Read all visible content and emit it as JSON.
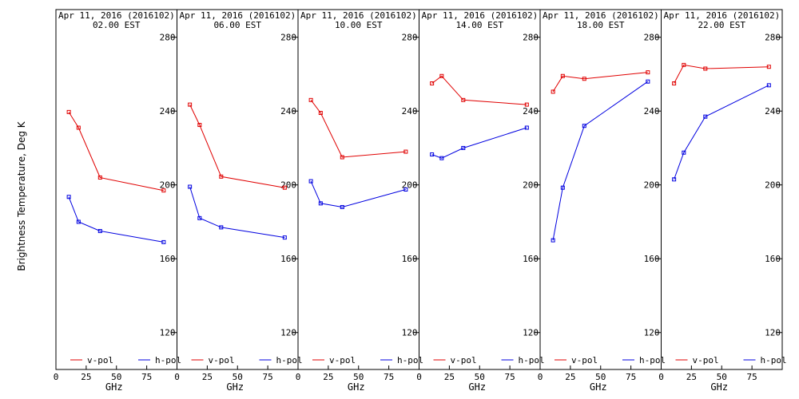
{
  "figure": {
    "ylabel": "Brightness Temperature, Deg K",
    "xlabel": "GHz"
  },
  "colors": {
    "v_pol": "#e00000",
    "h_pol": "#0000e0",
    "axes": "#000000",
    "background": "#ffffff"
  },
  "chart_data": [
    {
      "type": "line",
      "title": "Apr 11, 2016 (2016102)",
      "subtitle": "02.00 EST",
      "xlabel": "GHz",
      "xlim": [
        0,
        100
      ],
      "ylim": [
        100,
        295
      ],
      "xticks": [
        "0",
        "25",
        "50",
        "75"
      ],
      "yticks": [
        "120",
        "160",
        "200",
        "240",
        "280"
      ],
      "x": [
        10.65,
        18.7,
        36.5,
        89.0
      ],
      "series": [
        {
          "name": "v-pol",
          "values": [
            239.5,
            231,
            204,
            197
          ]
        },
        {
          "name": "h-pol",
          "values": [
            193.5,
            180,
            175,
            169
          ]
        }
      ],
      "legend": [
        "v-pol",
        "h-pol"
      ],
      "legend_position": "bottom"
    },
    {
      "type": "line",
      "title": "Apr 11, 2016 (2016102)",
      "subtitle": "06.00 EST",
      "xlabel": "GHz",
      "xlim": [
        0,
        100
      ],
      "ylim": [
        100,
        295
      ],
      "xticks": [
        "0",
        "25",
        "50",
        "75"
      ],
      "yticks": [
        "120",
        "160",
        "200",
        "240",
        "280"
      ],
      "x": [
        10.65,
        18.7,
        36.5,
        89.0
      ],
      "series": [
        {
          "name": "v-pol",
          "values": [
            243.5,
            232.5,
            204.5,
            198.5
          ]
        },
        {
          "name": "h-pol",
          "values": [
            199,
            182,
            177,
            171.5
          ]
        }
      ],
      "legend": [
        "v-pol",
        "h-pol"
      ],
      "legend_position": "bottom"
    },
    {
      "type": "line",
      "title": "Apr 11, 2016 (2016102)",
      "subtitle": "10.00 EST",
      "xlabel": "GHz",
      "xlim": [
        0,
        100
      ],
      "ylim": [
        100,
        295
      ],
      "xticks": [
        "0",
        "25",
        "50",
        "75"
      ],
      "yticks": [
        "120",
        "160",
        "200",
        "240",
        "280"
      ],
      "x": [
        10.65,
        18.7,
        36.5,
        89.0
      ],
      "series": [
        {
          "name": "v-pol",
          "values": [
            246,
            239,
            215,
            218
          ]
        },
        {
          "name": "h-pol",
          "values": [
            202,
            190,
            188,
            197.5
          ]
        }
      ],
      "legend": [
        "v-pol",
        "h-pol"
      ],
      "legend_position": "bottom"
    },
    {
      "type": "line",
      "title": "Apr 11, 2016 (2016102)",
      "subtitle": "14.00 EST",
      "xlabel": "GHz",
      "xlim": [
        0,
        100
      ],
      "ylim": [
        100,
        295
      ],
      "xticks": [
        "0",
        "25",
        "50",
        "75"
      ],
      "yticks": [
        "120",
        "160",
        "200",
        "240",
        "280"
      ],
      "x": [
        10.65,
        18.7,
        36.5,
        89.0
      ],
      "series": [
        {
          "name": "v-pol",
          "values": [
            255,
            259,
            246,
            243.5
          ]
        },
        {
          "name": "h-pol",
          "values": [
            216.5,
            214.5,
            220,
            231
          ]
        }
      ],
      "legend": [
        "v-pol",
        "h-pol"
      ],
      "legend_position": "bottom"
    },
    {
      "type": "line",
      "title": "Apr 11, 2016 (2016102)",
      "subtitle": "18.00 EST",
      "xlabel": "GHz",
      "xlim": [
        0,
        100
      ],
      "ylim": [
        100,
        295
      ],
      "xticks": [
        "0",
        "25",
        "50",
        "75"
      ],
      "yticks": [
        "120",
        "160",
        "200",
        "240",
        "280"
      ],
      "x": [
        10.65,
        18.7,
        36.5,
        89.0
      ],
      "series": [
        {
          "name": "v-pol",
          "values": [
            250.5,
            259,
            257.5,
            261
          ]
        },
        {
          "name": "h-pol",
          "values": [
            170,
            198.5,
            232,
            256
          ]
        }
      ],
      "legend": [
        "v-pol",
        "h-pol"
      ],
      "legend_position": "bottom"
    },
    {
      "type": "line",
      "title": "Apr 11, 2016 (2016102)",
      "subtitle": "22.00 EST",
      "xlabel": "GHz",
      "xlim": [
        0,
        100
      ],
      "ylim": [
        100,
        295
      ],
      "xticks": [
        "0",
        "25",
        "50",
        "75"
      ],
      "yticks": [
        "120",
        "160",
        "200",
        "240",
        "280"
      ],
      "x": [
        10.65,
        18.7,
        36.5,
        89.0
      ],
      "series": [
        {
          "name": "v-pol",
          "values": [
            255,
            265,
            263,
            264
          ]
        },
        {
          "name": "h-pol",
          "values": [
            203,
            217.5,
            237,
            254
          ]
        }
      ],
      "legend": [
        "v-pol",
        "h-pol"
      ],
      "legend_position": "bottom"
    }
  ]
}
